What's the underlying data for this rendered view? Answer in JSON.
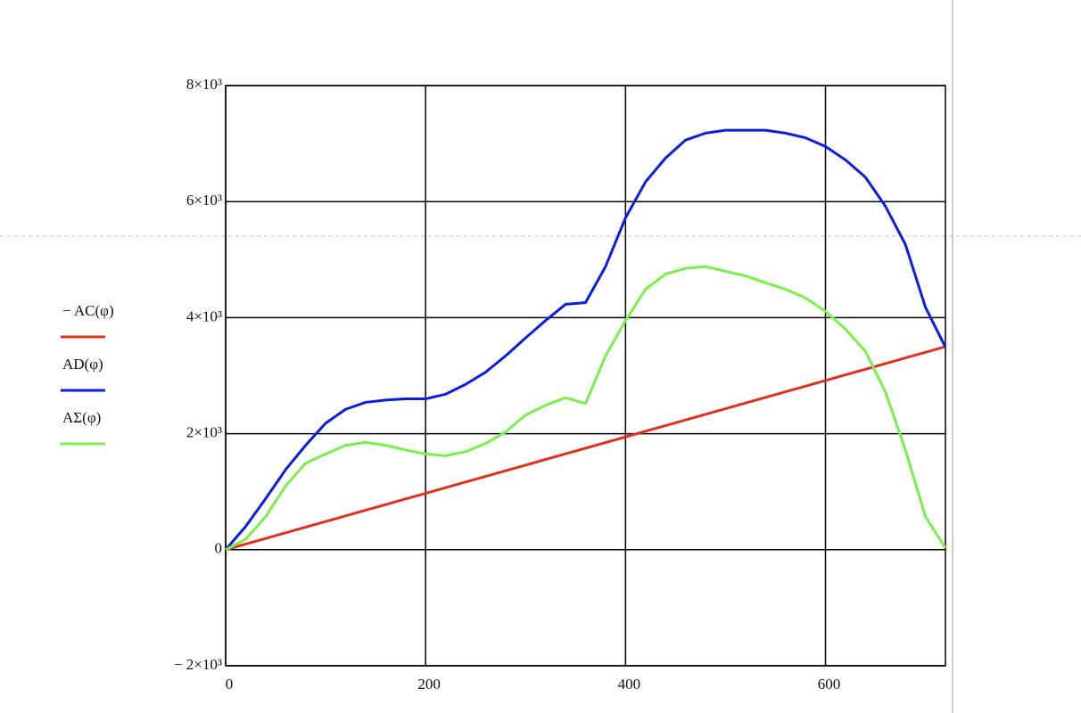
{
  "chart_data": {
    "type": "line",
    "x": [
      0,
      20,
      40,
      60,
      80,
      100,
      120,
      140,
      160,
      180,
      200,
      220,
      240,
      260,
      280,
      300,
      320,
      340,
      360,
      380,
      400,
      420,
      440,
      460,
      480,
      500,
      520,
      540,
      560,
      580,
      600,
      620,
      640,
      660,
      680,
      700,
      720
    ],
    "series": [
      {
        "name": "− AC(φ)",
        "color": "#e0301e",
        "values": [
          0,
          97,
          194,
          292,
          389,
          486,
          583,
          681,
          778,
          875,
          972,
          1069,
          1167,
          1264,
          1361,
          1458,
          1556,
          1653,
          1750,
          1847,
          1944,
          2042,
          2139,
          2236,
          2333,
          2431,
          2528,
          2625,
          2722,
          2819,
          2917,
          3014,
          3111,
          3208,
          3306,
          3403,
          3500
        ]
      },
      {
        "name": "AD(φ)",
        "color": "#0a1ee0",
        "values": [
          0,
          400,
          880,
          1380,
          1800,
          2180,
          2420,
          2540,
          2580,
          2600,
          2600,
          2680,
          2850,
          3060,
          3340,
          3650,
          3950,
          4230,
          4260,
          4880,
          5720,
          6340,
          6750,
          7060,
          7180,
          7230,
          7230,
          7230,
          7180,
          7100,
          6950,
          6720,
          6420,
          5920,
          5260,
          4180,
          3490
        ]
      },
      {
        "name": "AΣ(φ)",
        "color": "#7cf04a",
        "values": [
          0,
          180,
          570,
          1100,
          1490,
          1650,
          1800,
          1850,
          1800,
          1720,
          1650,
          1620,
          1690,
          1830,
          2030,
          2320,
          2490,
          2620,
          2520,
          3340,
          3950,
          4490,
          4750,
          4850,
          4880,
          4800,
          4720,
          4600,
          4490,
          4340,
          4110,
          3800,
          3420,
          2720,
          1720,
          570,
          30
        ]
      }
    ],
    "xlim": [
      0,
      720
    ],
    "xticks": [
      0,
      200,
      400,
      600
    ],
    "ylim": [
      -2000,
      8000
    ],
    "yticks": [
      {
        "value": -2000,
        "label": "− 2×10³"
      },
      0,
      {
        "value": 2000,
        "label": "2×10³"
      },
      {
        "value": 4000,
        "label": "4×10³"
      },
      {
        "value": 6000,
        "label": "6×10³"
      },
      {
        "value": 8000,
        "label": "8×10³"
      }
    ],
    "grid": true,
    "legend": "left"
  }
}
